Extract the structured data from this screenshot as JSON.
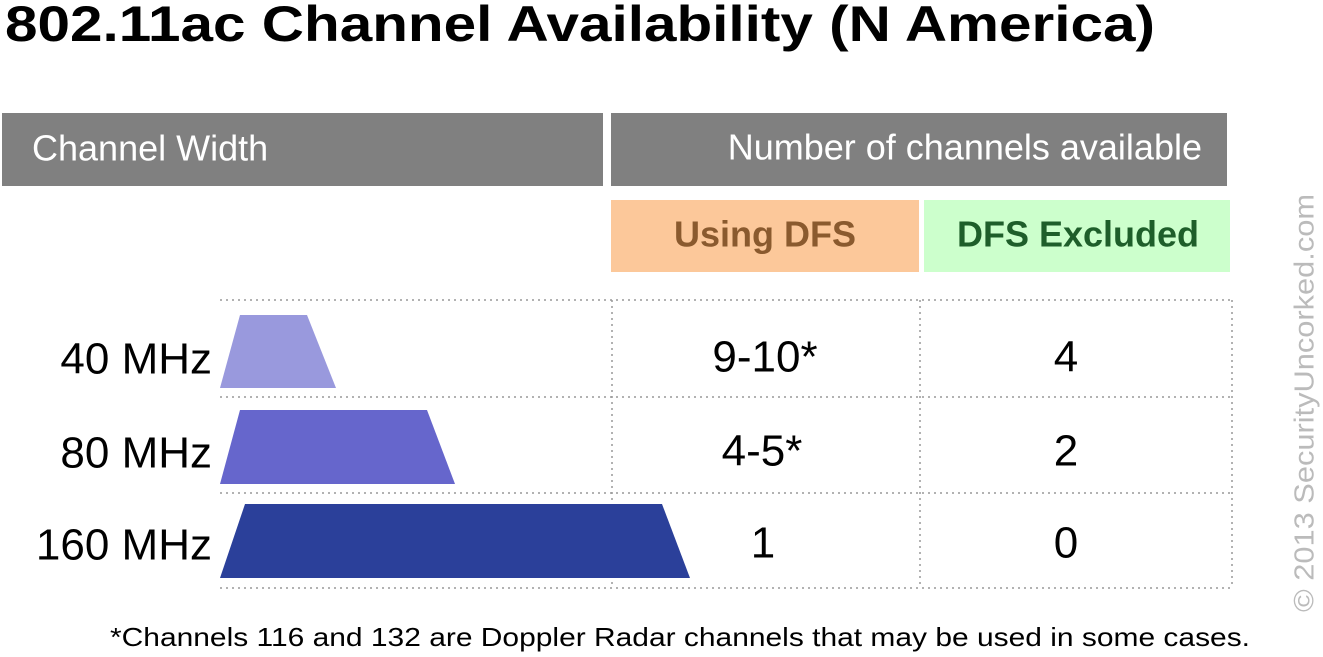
{
  "title": "802.11ac Channel Availability (N America)",
  "header": {
    "width": "Channel Width",
    "available": "Number of channels available"
  },
  "subheader": {
    "dfs": "Using DFS",
    "excluded": "DFS Excluded"
  },
  "table": {
    "rows": [
      [
        "40 MHz",
        "9-10*",
        "4"
      ],
      [
        "80 MHz",
        "4-5*",
        "2"
      ],
      [
        "160 MHz",
        "1",
        "0"
      ]
    ]
  },
  "footnote": "*Channels 116 and 132 are Doppler Radar channels that may be used in some cases.",
  "copyright": "© 2013 SecurityUncorked.com"
}
